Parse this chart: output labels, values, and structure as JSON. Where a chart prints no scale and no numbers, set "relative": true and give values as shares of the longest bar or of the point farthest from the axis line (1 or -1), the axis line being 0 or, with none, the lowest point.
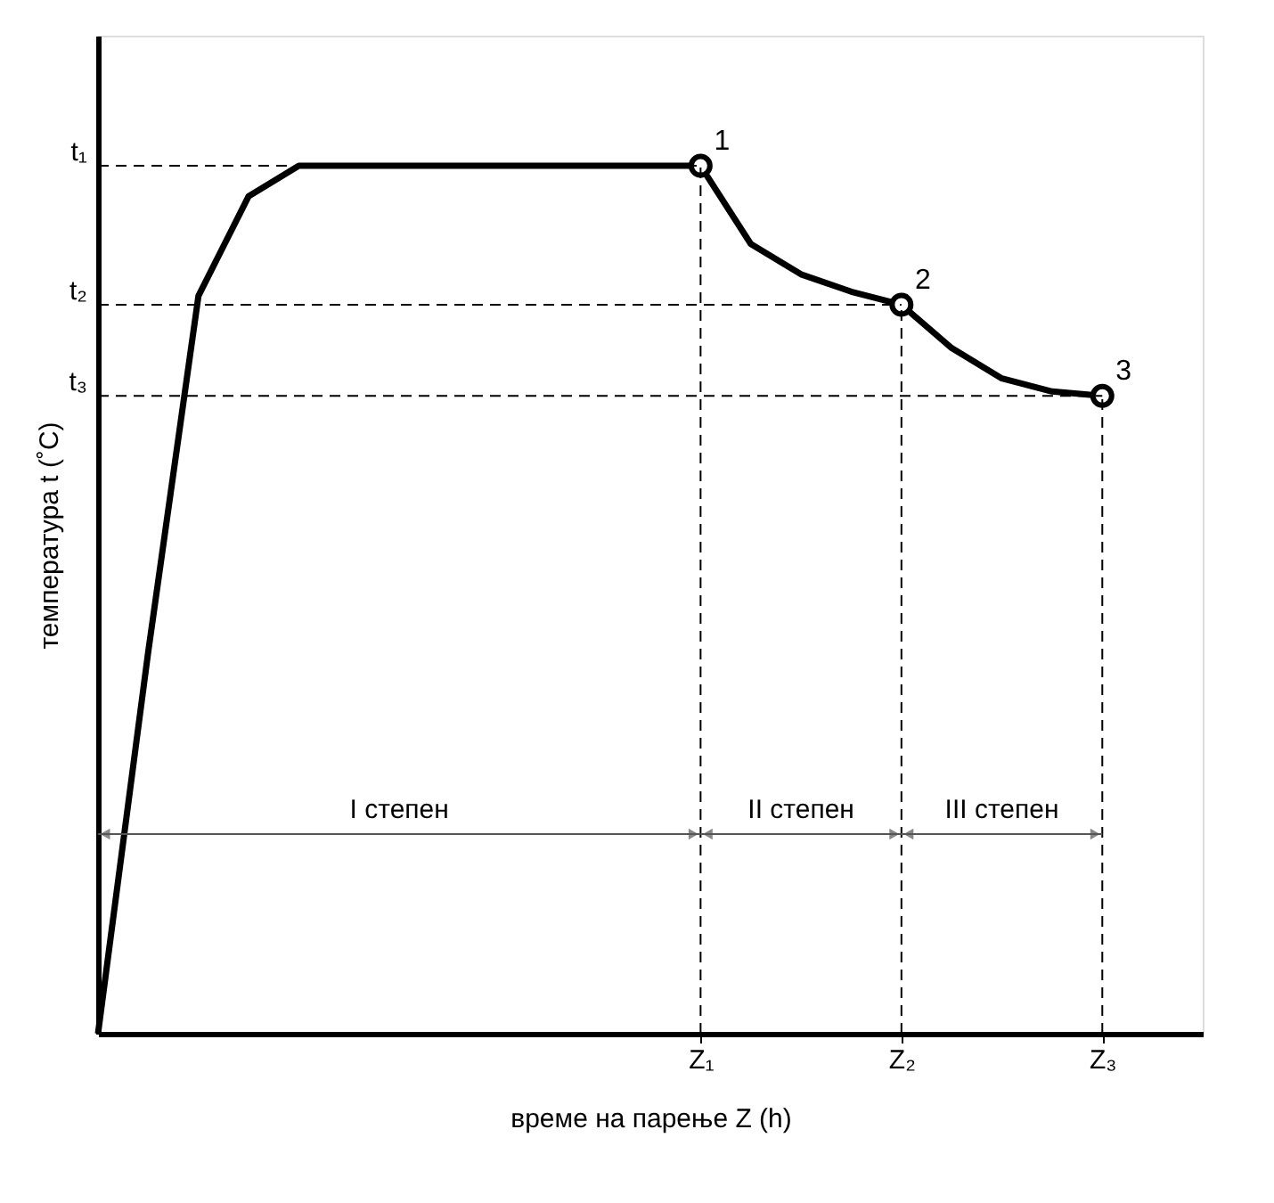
{
  "chart_data": {
    "type": "line",
    "relative": true,
    "xlabel": "време на парење Z (h)",
    "ylabel": "температура  t  (˚C)",
    "categories": [
      null,
      null,
      null,
      null,
      null,
      null,
      null,
      null,
      null,
      null,
      null,
      null,
      "Z₁",
      null,
      null,
      null,
      "Z₂",
      null,
      null,
      null,
      "Z₃",
      null,
      null
    ],
    "series": [
      {
        "color": "#000000",
        "values": [
          0,
          0.44,
          0.85,
          0.965,
          1,
          1,
          1,
          1,
          1,
          1,
          1,
          1,
          1,
          0.91,
          0.875,
          0.855,
          0.84,
          0.79,
          0.755,
          0.74,
          0.735,
          null,
          null
        ]
      },
      {
        "type": "scatter",
        "color": "#000000",
        "marker": "circle",
        "values": [
          null,
          null,
          null,
          null,
          null,
          null,
          null,
          null,
          null,
          null,
          null,
          null,
          1,
          null,
          null,
          null,
          0.84,
          null,
          null,
          null,
          0.735,
          null,
          null
        ]
      }
    ],
    "ref_lines": [
      {
        "axis": "y",
        "value": 1,
        "label": "t₁",
        "line_style": "dashed"
      },
      {
        "axis": "y",
        "value": 0.84,
        "label": "t₂",
        "line_style": "dashed"
      },
      {
        "axis": "y",
        "value": 0.735,
        "label": "t₃",
        "line_style": "dashed"
      },
      {
        "axis": "x",
        "value": "Z₁",
        "line_style": "dashed"
      },
      {
        "axis": "x",
        "value": "Z₂",
        "line_style": "dashed"
      },
      {
        "axis": "x",
        "value": "Z₃",
        "line_style": "dashed"
      }
    ],
    "annotations": [
      "I степен",
      "II степен",
      "III степен",
      {
        "text": "1",
        "x": "Z₁",
        "y": 1
      },
      {
        "text": "2",
        "x": "Z₂",
        "y": 0.84
      },
      {
        "text": "3",
        "x": "Z₃",
        "y": 0.735
      }
    ],
    "grid": false
  }
}
